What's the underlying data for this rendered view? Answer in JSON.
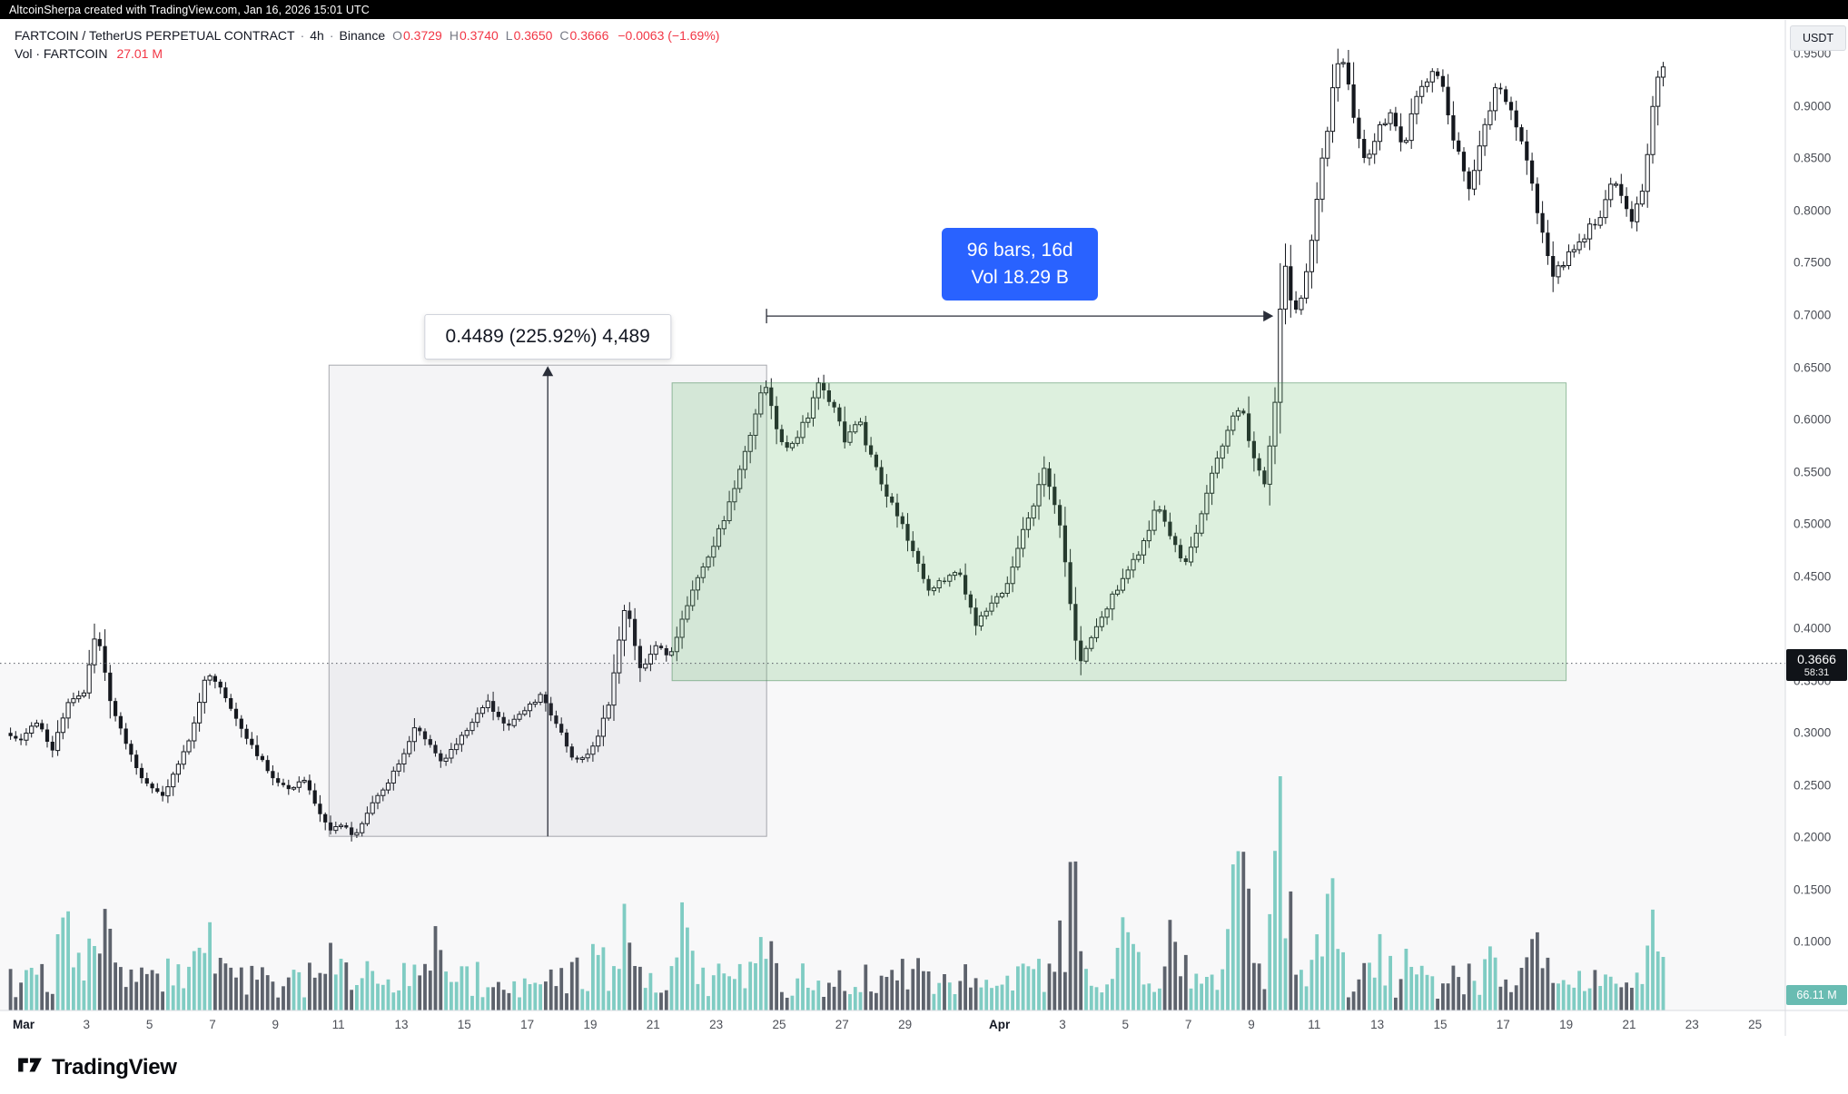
{
  "topbar": {
    "attribution": "AltcoinSherpa created with TradingView.com, Jan 16, 2026 15:01 UTC"
  },
  "legend": {
    "title": "FARTCOIN / TetherUS PERPETUAL CONTRACT",
    "sep": "·",
    "interval": "4h",
    "exchange": "Binance",
    "ohlc": {
      "o_label": "O",
      "o": "0.3729",
      "h_label": "H",
      "h": "0.3740",
      "l_label": "L",
      "l": "0.3650",
      "c_label": "C",
      "c": "0.3666",
      "change": "−0.0063 (−1.69%)"
    },
    "volume_row": {
      "label": "Vol · FARTCOIN",
      "value": "27.01 M"
    }
  },
  "footer": {
    "brand": "TradingView"
  },
  "chart_data": {
    "type": "candlestick",
    "symbol": "FARTCOIN/TetherUS Perpetual",
    "timeframe": "4h",
    "exchange": "Binance",
    "bars_per_day": 6,
    "day_start": -0.5,
    "day_end": 52.1,
    "last_price": 0.3666,
    "last_price_label": "0.3666",
    "countdown": "58:31",
    "volume_badge": "66.11 M",
    "y_axis": {
      "unit": "USDT",
      "min": 0.1,
      "max": 0.95,
      "step": 0.05
    },
    "price_path": [
      [
        -0.5,
        0.3
      ],
      [
        0,
        0.295
      ],
      [
        0.5,
        0.31
      ],
      [
        1.0,
        0.285
      ],
      [
        1.5,
        0.33
      ],
      [
        2.0,
        0.34
      ],
      [
        2.4,
        0.398
      ],
      [
        2.8,
        0.335
      ],
      [
        3.2,
        0.3
      ],
      [
        3.6,
        0.27
      ],
      [
        4.0,
        0.25
      ],
      [
        4.5,
        0.24
      ],
      [
        5.0,
        0.268
      ],
      [
        5.4,
        0.3
      ],
      [
        5.9,
        0.358
      ],
      [
        6.3,
        0.345
      ],
      [
        6.7,
        0.32
      ],
      [
        7.1,
        0.3
      ],
      [
        7.6,
        0.275
      ],
      [
        8.0,
        0.258
      ],
      [
        8.5,
        0.246
      ],
      [
        9.0,
        0.256
      ],
      [
        9.4,
        0.226
      ],
      [
        9.8,
        0.206
      ],
      [
        10.2,
        0.213
      ],
      [
        10.6,
        0.199
      ],
      [
        11.0,
        0.224
      ],
      [
        11.5,
        0.246
      ],
      [
        12.0,
        0.27
      ],
      [
        12.5,
        0.304
      ],
      [
        13.0,
        0.29
      ],
      [
        13.4,
        0.272
      ],
      [
        14.0,
        0.298
      ],
      [
        14.8,
        0.33
      ],
      [
        15.4,
        0.306
      ],
      [
        16.0,
        0.32
      ],
      [
        16.5,
        0.336
      ],
      [
        17.0,
        0.31
      ],
      [
        17.6,
        0.272
      ],
      [
        18.2,
        0.286
      ],
      [
        18.7,
        0.33
      ],
      [
        19.2,
        0.424
      ],
      [
        19.7,
        0.357
      ],
      [
        20.2,
        0.386
      ],
      [
        20.6,
        0.372
      ],
      [
        21.0,
        0.41
      ],
      [
        21.5,
        0.448
      ],
      [
        22.0,
        0.478
      ],
      [
        22.5,
        0.52
      ],
      [
        23.0,
        0.565
      ],
      [
        23.3,
        0.6
      ],
      [
        23.6,
        0.644
      ],
      [
        23.9,
        0.598
      ],
      [
        24.3,
        0.57
      ],
      [
        24.8,
        0.59
      ],
      [
        25.4,
        0.638
      ],
      [
        25.8,
        0.61
      ],
      [
        26.2,
        0.58
      ],
      [
        26.6,
        0.6
      ],
      [
        27.0,
        0.565
      ],
      [
        27.5,
        0.53
      ],
      [
        28.0,
        0.5
      ],
      [
        28.4,
        0.47
      ],
      [
        28.8,
        0.432
      ],
      [
        29.3,
        0.446
      ],
      [
        29.8,
        0.458
      ],
      [
        30.3,
        0.402
      ],
      [
        30.8,
        0.42
      ],
      [
        31.3,
        0.44
      ],
      [
        31.8,
        0.49
      ],
      [
        32.5,
        0.55
      ],
      [
        33.0,
        0.5
      ],
      [
        33.3,
        0.43
      ],
      [
        33.6,
        0.366
      ],
      [
        34.0,
        0.39
      ],
      [
        34.5,
        0.42
      ],
      [
        35.0,
        0.45
      ],
      [
        35.5,
        0.47
      ],
      [
        36.1,
        0.52
      ],
      [
        36.6,
        0.48
      ],
      [
        37.0,
        0.462
      ],
      [
        37.4,
        0.5
      ],
      [
        37.8,
        0.548
      ],
      [
        38.3,
        0.59
      ],
      [
        38.8,
        0.612
      ],
      [
        39.1,
        0.57
      ],
      [
        39.5,
        0.536
      ],
      [
        39.8,
        0.6
      ],
      [
        40.1,
        0.758
      ],
      [
        40.4,
        0.7
      ],
      [
        40.8,
        0.728
      ],
      [
        41.2,
        0.82
      ],
      [
        41.6,
        0.9
      ],
      [
        41.9,
        0.952
      ],
      [
        42.3,
        0.898
      ],
      [
        42.7,
        0.845
      ],
      [
        43.1,
        0.875
      ],
      [
        43.5,
        0.895
      ],
      [
        43.9,
        0.865
      ],
      [
        44.3,
        0.9
      ],
      [
        44.9,
        0.944
      ],
      [
        45.3,
        0.9
      ],
      [
        45.7,
        0.846
      ],
      [
        46.0,
        0.815
      ],
      [
        46.4,
        0.87
      ],
      [
        46.9,
        0.93
      ],
      [
        47.4,
        0.89
      ],
      [
        47.9,
        0.84
      ],
      [
        48.3,
        0.78
      ],
      [
        48.7,
        0.736
      ],
      [
        49.1,
        0.754
      ],
      [
        49.6,
        0.77
      ],
      [
        50.2,
        0.8
      ],
      [
        50.7,
        0.834
      ],
      [
        51.1,
        0.79
      ],
      [
        51.5,
        0.82
      ],
      [
        51.8,
        0.888
      ],
      [
        52.1,
        0.944
      ]
    ],
    "volume_spikes": [
      [
        1.5,
        2.6
      ],
      [
        2.4,
        2.0
      ],
      [
        6.0,
        2.6
      ],
      [
        9.8,
        1.8
      ],
      [
        13.4,
        2.2
      ],
      [
        18.0,
        1.6
      ],
      [
        19.3,
        2.3
      ],
      [
        21.0,
        2.1
      ],
      [
        23.5,
        1.7
      ],
      [
        28.0,
        1.5
      ],
      [
        33.4,
        3.0
      ],
      [
        35.0,
        2.2
      ],
      [
        36.5,
        2.0
      ],
      [
        38.6,
        4.4
      ],
      [
        40.0,
        4.0
      ],
      [
        41.5,
        2.9
      ],
      [
        43.0,
        1.8
      ],
      [
        44.3,
        2.0
      ],
      [
        46.9,
        1.7
      ],
      [
        48.0,
        1.6
      ],
      [
        51.8,
        1.8
      ]
    ],
    "x_axis_labels": [
      {
        "label": "Mar",
        "day": 0,
        "month": true
      },
      {
        "label": "3",
        "day": 2
      },
      {
        "label": "5",
        "day": 4
      },
      {
        "label": "7",
        "day": 6
      },
      {
        "label": "9",
        "day": 8
      },
      {
        "label": "11",
        "day": 10
      },
      {
        "label": "13",
        "day": 12
      },
      {
        "label": "15",
        "day": 14
      },
      {
        "label": "17",
        "day": 16
      },
      {
        "label": "19",
        "day": 18
      },
      {
        "label": "21",
        "day": 20
      },
      {
        "label": "23",
        "day": 22
      },
      {
        "label": "25",
        "day": 24
      },
      {
        "label": "27",
        "day": 26
      },
      {
        "label": "29",
        "day": 28
      },
      {
        "label": "Apr",
        "day": 31,
        "month": true
      },
      {
        "label": "3",
        "day": 33
      },
      {
        "label": "5",
        "day": 35
      },
      {
        "label": "7",
        "day": 37
      },
      {
        "label": "9",
        "day": 39
      },
      {
        "label": "11",
        "day": 41
      },
      {
        "label": "13",
        "day": 43
      },
      {
        "label": "15",
        "day": 45
      },
      {
        "label": "17",
        "day": 47
      },
      {
        "label": "19",
        "day": 49
      },
      {
        "label": "21",
        "day": 51
      },
      {
        "label": "23",
        "day": 53
      },
      {
        "label": "25",
        "day": 55
      }
    ],
    "annotations": {
      "price_range_label": "0.4489 (225.92%) 4,489",
      "price_range_box": {
        "d1": 9.7,
        "d2": 23.6,
        "p_low": 0.201,
        "p_high": 0.652
      },
      "date_range_label_line1": "96 bars, 16d",
      "date_range_label_line2": "Vol 18.29 B",
      "date_range": {
        "d1": 23.6,
        "d2": 39.7,
        "p": 0.699
      },
      "consolidation_box": {
        "d1": 20.6,
        "d2": 49.0,
        "p_low": 0.35,
        "p_high": 0.635
      }
    },
    "colors": {
      "up": "#ffffff",
      "down": "#15181e",
      "wick": "#15181e",
      "vol_up": "#7fccc3",
      "vol_down": "#5d626c",
      "accent_blue": "#2962ff",
      "box_fill": "rgba(102,187,106,0.22)",
      "box_stroke": "rgba(60,130,80,0.5)",
      "measure_fill": "rgba(132,138,152,0.09)",
      "measure_stroke": "rgba(70,74,84,0.45)",
      "last_price_badge": "#101318",
      "volume_badge_bg": "#69bcb2"
    }
  }
}
